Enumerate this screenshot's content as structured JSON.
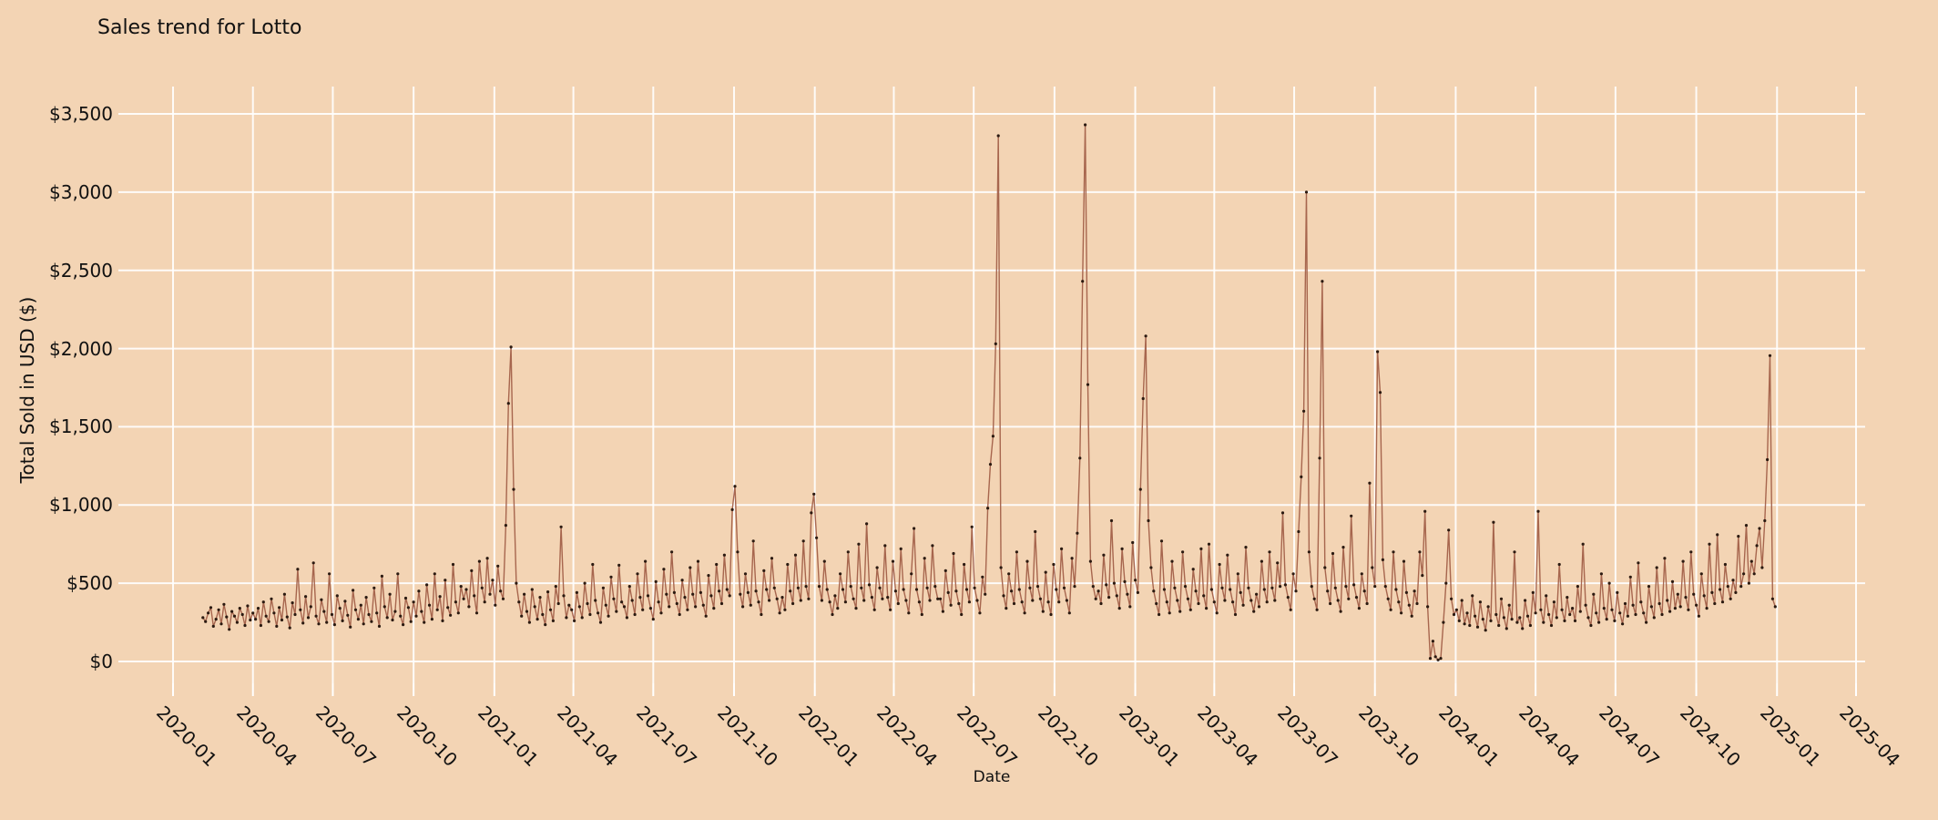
{
  "title": "Sales trend for Lotto",
  "axes": {
    "x_label": "Date",
    "y_label": "Total Sold in USD ($)",
    "x_ticks": [
      "2020-01",
      "2020-04",
      "2020-07",
      "2020-10",
      "2021-01",
      "2021-04",
      "2021-07",
      "2021-10",
      "2022-01",
      "2022-04",
      "2022-07",
      "2022-10",
      "2023-01",
      "2023-04",
      "2023-07",
      "2023-10",
      "2024-01",
      "2024-04",
      "2024-07",
      "2024-10",
      "2025-01",
      "2025-04"
    ],
    "y_ticks": [
      "$0",
      "$500",
      "$1,000",
      "$1,500",
      "$2,000",
      "$2,500",
      "$3,000",
      "$3,500"
    ],
    "y_tick_values": [
      0,
      500,
      1000,
      1500,
      2000,
      2500,
      3000,
      3500
    ]
  },
  "style": {
    "background": "#f3d4b4",
    "grid_color": "#ffffff",
    "line_color": "#a15c45",
    "marker_color": "#2b1a11",
    "text_color": "#1a1a1a"
  },
  "chart_data": {
    "type": "line",
    "title": "Sales trend for Lotto",
    "xlabel": "Date",
    "ylabel": "Total Sold in USD ($)",
    "grid": true,
    "legend": false,
    "ylim": [
      -140,
      3660
    ],
    "x_tick_labels": [
      "2020-01",
      "2020-04",
      "2020-07",
      "2020-10",
      "2021-01",
      "2021-04",
      "2021-07",
      "2021-10",
      "2022-01",
      "2022-04",
      "2022-07",
      "2022-10",
      "2023-01",
      "2023-04",
      "2023-07",
      "2023-10",
      "2024-01",
      "2024-04",
      "2024-07",
      "2024-10",
      "2025-01",
      "2025-04"
    ],
    "y_tick_values": [
      0,
      500,
      1000,
      1500,
      2000,
      2500,
      3000,
      3500
    ],
    "x_start_date": "2020-02-04",
    "x_step_days": 3,
    "key_events": [
      {
        "date": "2021-01-20",
        "value": 2010
      },
      {
        "date": "2021-10-02",
        "value": 1120
      },
      {
        "date": "2022-01-01",
        "value": 1070
      },
      {
        "date": "2022-07-29",
        "value": 3360
      },
      {
        "date": "2022-11-05",
        "value": 3430
      },
      {
        "date": "2023-01-13",
        "value": 2080
      },
      {
        "date": "2023-07-15",
        "value": 3000
      },
      {
        "date": "2023-08-02",
        "value": 2430
      },
      {
        "date": "2023-10-04",
        "value": 1980
      },
      {
        "date": "2023-12-06",
        "value": 10
      },
      {
        "date": "2024-12-24",
        "value": 1955
      }
    ],
    "values": [
      280,
      255,
      310,
      345,
      225,
      270,
      330,
      240,
      365,
      285,
      205,
      320,
      290,
      250,
      340,
      300,
      230,
      355,
      265,
      310,
      270,
      340,
      230,
      380,
      290,
      255,
      400,
      310,
      225,
      345,
      265,
      430,
      285,
      215,
      375,
      300,
      590,
      330,
      245,
      415,
      280,
      350,
      630,
      290,
      240,
      395,
      320,
      250,
      560,
      300,
      235,
      420,
      340,
      260,
      385,
      295,
      220,
      455,
      330,
      270,
      360,
      240,
      410,
      300,
      255,
      470,
      310,
      225,
      545,
      350,
      280,
      430,
      265,
      320,
      560,
      290,
      235,
      405,
      345,
      255,
      380,
      290,
      450,
      320,
      250,
      490,
      360,
      270,
      560,
      330,
      415,
      260,
      520,
      345,
      295,
      620,
      380,
      310,
      480,
      400,
      460,
      350,
      580,
      420,
      310,
      640,
      470,
      380,
      660,
      430,
      520,
      360,
      610,
      450,
      400,
      870,
      1650,
      2010,
      1100,
      500,
      380,
      290,
      430,
      320,
      250,
      460,
      350,
      270,
      410,
      300,
      235,
      445,
      330,
      260,
      480,
      370,
      860,
      420,
      280,
      360,
      330,
      260,
      440,
      350,
      280,
      500,
      370,
      300,
      620,
      390,
      310,
      250,
      470,
      360,
      290,
      540,
      400,
      320,
      615,
      380,
      350,
      280,
      480,
      390,
      300,
      560,
      410,
      330,
      640,
      420,
      340,
      270,
      510,
      380,
      310,
      590,
      430,
      350,
      700,
      440,
      370,
      300,
      520,
      410,
      330,
      600,
      430,
      350,
      640,
      440,
      360,
      290,
      550,
      420,
      340,
      620,
      450,
      370,
      680,
      460,
      420,
      970,
      1120,
      700,
      430,
      350,
      560,
      440,
      360,
      770,
      450,
      380,
      300,
      580,
      460,
      390,
      660,
      470,
      400,
      310,
      410,
      330,
      620,
      450,
      370,
      680,
      470,
      390,
      770,
      480,
      400,
      950,
      1070,
      790,
      480,
      390,
      640,
      460,
      380,
      300,
      420,
      340,
      560,
      460,
      380,
      700,
      480,
      400,
      340,
      750,
      470,
      390,
      880,
      490,
      410,
      330,
      600,
      470,
      400,
      740,
      410,
      330,
      640,
      450,
      370,
      720,
      460,
      390,
      310,
      560,
      850,
      460,
      380,
      300,
      660,
      470,
      390,
      740,
      480,
      400,
      400,
      320,
      580,
      440,
      360,
      690,
      450,
      370,
      300,
      620,
      460,
      380,
      860,
      470,
      390,
      310,
      540,
      430,
      980,
      1260,
      1440,
      2030,
      3360,
      600,
      420,
      340,
      560,
      450,
      370,
      700,
      460,
      380,
      310,
      640,
      470,
      390,
      830,
      480,
      400,
      320,
      570,
      380,
      300,
      620,
      460,
      380,
      720,
      470,
      390,
      310,
      660,
      480,
      820,
      1300,
      2430,
      3430,
      1770,
      640,
      480,
      400,
      450,
      370,
      680,
      490,
      410,
      900,
      500,
      420,
      340,
      720,
      510,
      430,
      350,
      760,
      520,
      440,
      1100,
      1680,
      2080,
      900,
      600,
      450,
      370,
      300,
      770,
      460,
      380,
      310,
      640,
      470,
      390,
      320,
      700,
      480,
      400,
      330,
      590,
      450,
      370,
      720,
      420,
      340,
      750,
      460,
      380,
      310,
      620,
      470,
      390,
      680,
      460,
      380,
      300,
      560,
      440,
      360,
      730,
      470,
      390,
      320,
      430,
      350,
      640,
      460,
      380,
      700,
      470,
      390,
      630,
      480,
      950,
      490,
      410,
      330,
      560,
      450,
      830,
      1180,
      1600,
      3000,
      700,
      480,
      400,
      330,
      1300,
      2430,
      600,
      450,
      370,
      690,
      470,
      390,
      320,
      730,
      480,
      400,
      930,
      490,
      410,
      340,
      560,
      450,
      370,
      1140,
      600,
      480,
      1980,
      1720,
      650,
      480,
      400,
      330,
      700,
      460,
      380,
      310,
      640,
      440,
      360,
      290,
      450,
      370,
      700,
      550,
      960,
      350,
      20,
      130,
      30,
      10,
      20,
      250,
      500,
      840,
      400,
      300,
      330,
      260,
      390,
      240,
      310,
      230,
      420,
      290,
      220,
      380,
      270,
      200,
      350,
      260,
      890,
      300,
      230,
      400,
      280,
      210,
      360,
      270,
      700,
      250,
      280,
      210,
      390,
      290,
      230,
      440,
      310,
      960,
      330,
      250,
      420,
      300,
      230,
      380,
      280,
      620,
      330,
      260,
      410,
      300,
      340,
      260,
      480,
      320,
      750,
      360,
      280,
      230,
      430,
      310,
      250,
      560,
      340,
      270,
      500,
      330,
      260,
      440,
      310,
      240,
      370,
      290,
      540,
      360,
      300,
      630,
      380,
      310,
      250,
      480,
      350,
      280,
      600,
      370,
      300,
      660,
      390,
      320,
      510,
      340,
      430,
      350,
      640,
      410,
      330,
      700,
      430,
      360,
      290,
      560,
      420,
      340,
      750,
      440,
      370,
      810,
      460,
      380,
      620,
      480,
      400,
      520,
      440,
      800,
      480,
      560,
      870,
      500,
      640,
      560,
      740,
      850,
      600,
      900,
      1290,
      1955,
      400,
      350
    ]
  }
}
